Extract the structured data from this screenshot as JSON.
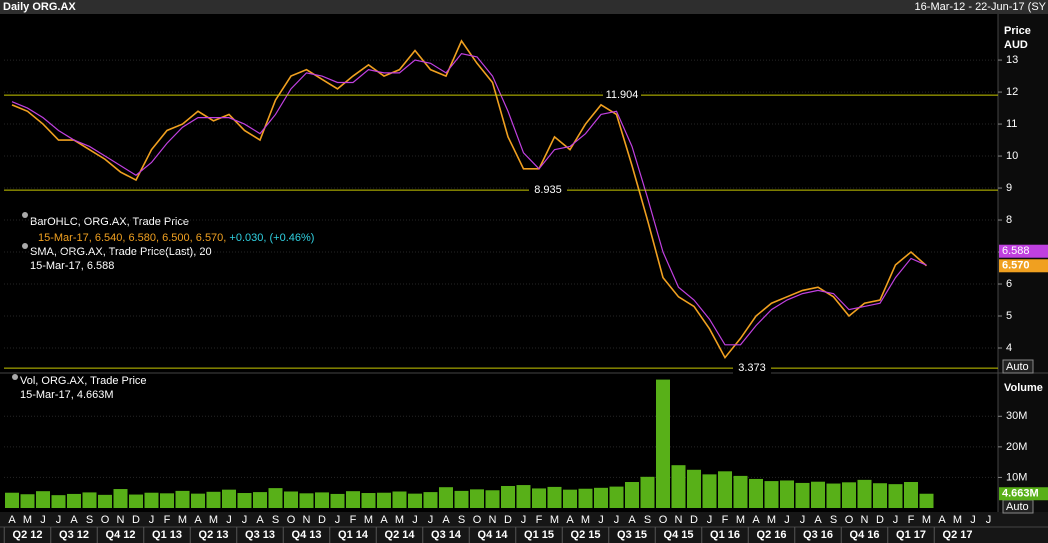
{
  "window": {
    "title": "Daily ORG.AX",
    "range": "16-Mar-12 - 22-Jun-17 (SY"
  },
  "chart_data": [
    {
      "type": "line",
      "y_label": "Price",
      "y_unit": "AUD",
      "auto_label": "Auto",
      "categories": [
        "A",
        "M",
        "J",
        "J",
        "A",
        "S",
        "O",
        "N",
        "D",
        "J",
        "F",
        "M",
        "A",
        "M",
        "J",
        "J",
        "A",
        "S",
        "O",
        "N",
        "D",
        "J",
        "F",
        "M",
        "A",
        "M",
        "J",
        "J",
        "A",
        "S",
        "O",
        "N",
        "D",
        "J",
        "F",
        "M",
        "A",
        "M",
        "J",
        "J",
        "A",
        "S",
        "O",
        "N",
        "D",
        "J",
        "F",
        "M",
        "A",
        "M",
        "J",
        "J",
        "A",
        "S",
        "O",
        "N",
        "D",
        "J",
        "F",
        "M",
        "A",
        "M",
        "J",
        "J"
      ],
      "quarters": [
        "Q2 12",
        "Q3 12",
        "Q4 12",
        "Q1 13",
        "Q2 13",
        "Q3 13",
        "Q4 13",
        "Q1 14",
        "Q2 14",
        "Q3 14",
        "Q4 14",
        "Q1 15",
        "Q2 15",
        "Q3 15",
        "Q4 15",
        "Q1 16",
        "Q2 16",
        "Q3 16",
        "Q4 16",
        "Q1 17",
        "Q2 17"
      ],
      "series": [
        {
          "name": "BarOHLC, ORG.AX, Trade Price",
          "info": "15-Mar-17, 6.540, 6.580, 6.500, 6.570,",
          "change": "+0.030, (+0.46%)",
          "last_label": "6.570",
          "color": "#f0a020",
          "values": [
            11.6,
            11.4,
            11.0,
            10.5,
            10.5,
            10.2,
            9.9,
            9.5,
            9.25,
            10.2,
            10.8,
            11.0,
            11.4,
            11.1,
            11.3,
            10.8,
            10.5,
            11.75,
            12.5,
            12.7,
            12.4,
            12.1,
            12.5,
            12.85,
            12.5,
            12.7,
            13.3,
            12.7,
            12.5,
            13.6,
            12.9,
            12.3,
            10.6,
            9.6,
            9.6,
            10.6,
            10.2,
            11.0,
            11.6,
            11.3,
            9.7,
            8.0,
            6.2,
            5.6,
            5.3,
            4.6,
            3.7,
            4.3,
            5.0,
            5.4,
            5.6,
            5.8,
            5.9,
            5.6,
            5.0,
            5.4,
            5.5,
            6.6,
            7.0,
            6.57,
            null,
            null,
            null,
            null
          ]
        },
        {
          "name": "SMA, ORG.AX, Trade Price(Last),  20",
          "info": "15-Mar-17, 6.588",
          "color": "#c040e0",
          "values": [
            11.7,
            11.5,
            11.2,
            10.8,
            10.5,
            10.3,
            10.0,
            9.7,
            9.4,
            9.8,
            10.4,
            10.9,
            11.2,
            11.2,
            11.2,
            11.0,
            10.7,
            11.3,
            12.1,
            12.6,
            12.5,
            12.3,
            12.3,
            12.7,
            12.6,
            12.6,
            13.0,
            12.9,
            12.6,
            13.2,
            13.1,
            12.5,
            11.4,
            10.1,
            9.6,
            10.2,
            10.3,
            10.7,
            11.3,
            11.4,
            10.3,
            8.7,
            7.0,
            5.9,
            5.5,
            4.9,
            4.1,
            4.1,
            4.7,
            5.2,
            5.5,
            5.7,
            5.8,
            5.7,
            5.2,
            5.3,
            5.4,
            6.2,
            6.8,
            6.588,
            null,
            null,
            null,
            null
          ]
        }
      ],
      "change_color": "#30d0e0",
      "levels": [
        11.904,
        8.935,
        3.373
      ],
      "level_color": "#c8c800",
      "ylim": [
        3.25,
        14.44
      ],
      "yticks": [
        4,
        5,
        6,
        7,
        8,
        9,
        10,
        11,
        12,
        13
      ],
      "grid": true
    },
    {
      "type": "bar",
      "y_label": "Volume",
      "auto_label": "Auto",
      "name": "Vol, ORG.AX, Trade Price",
      "info": "15-Mar-17, 4.663M",
      "last_label": "4.663M",
      "color": "#58b018",
      "values": [
        5000000,
        4500000,
        5500000,
        4200000,
        4600000,
        5100000,
        4300000,
        6200000,
        4400000,
        5000000,
        4800000,
        5600000,
        4700000,
        5300000,
        6000000,
        4900000,
        5200000,
        6500000,
        5400000,
        4800000,
        5100000,
        4600000,
        5500000,
        4900000,
        5000000,
        5400000,
        4700000,
        5200000,
        6800000,
        5600000,
        6100000,
        5800000,
        7200000,
        7500000,
        6400000,
        6900000,
        6000000,
        6300000,
        6600000,
        7000000,
        8500000,
        10200000,
        42000000,
        14000000,
        12500000,
        11000000,
        12000000,
        10500000,
        9500000,
        8800000,
        9000000,
        8200000,
        8600000,
        8000000,
        8400000,
        9200000,
        8100000,
        7800000,
        8500000,
        4663000,
        null,
        null,
        null,
        null
      ],
      "ylim": [
        0,
        43500000
      ],
      "yticks": [
        {
          "value": 10000000,
          "label": "10M"
        },
        {
          "value": 20000000,
          "label": "20M"
        },
        {
          "value": 30000000,
          "label": "30M"
        }
      ],
      "grid": true
    }
  ]
}
